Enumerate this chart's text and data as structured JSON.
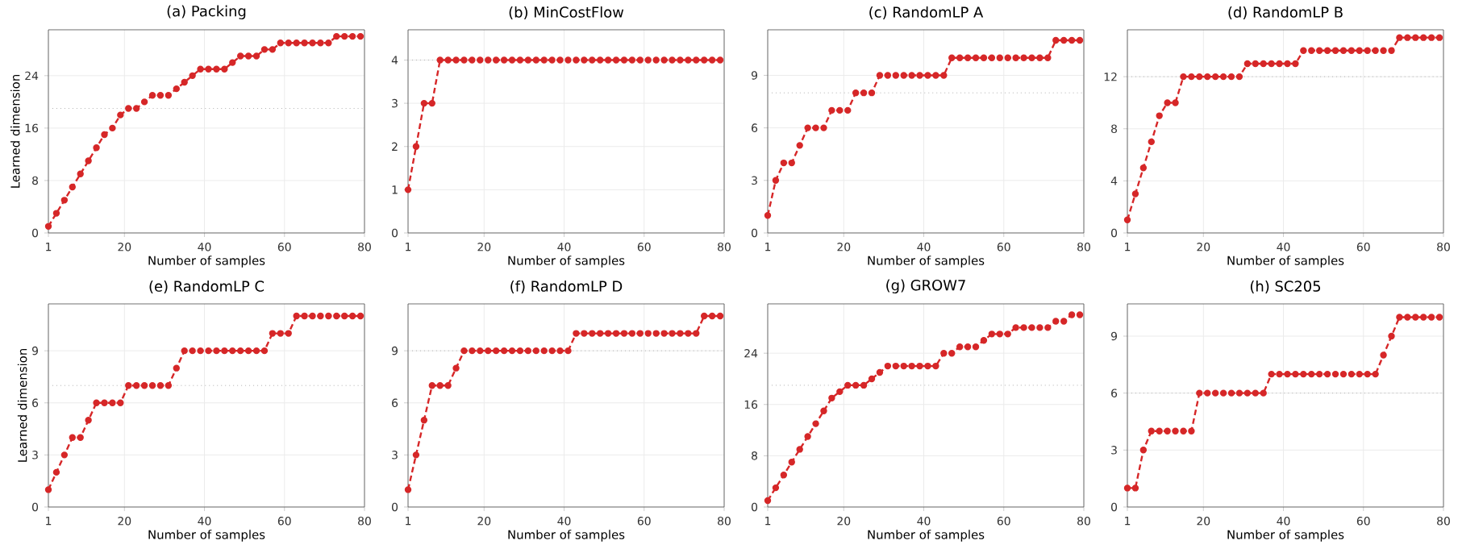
{
  "chart_data": [
    {
      "type": "line",
      "title": "(a) Packing",
      "xlabel": "Number of samples",
      "ylabel": "Learned dimension",
      "color": "#d62728",
      "marker": "circle",
      "line_style": "dashed",
      "grid": true,
      "xlim": [
        1,
        80
      ],
      "xticks": [
        1,
        20,
        40,
        60,
        80
      ],
      "ylim": [
        0,
        31
      ],
      "yticks": [
        0,
        8,
        16,
        24
      ],
      "ref_lines": [
        {
          "axis": "y",
          "value": 19,
          "color": "#b0b0b0",
          "line_style": "dotted"
        }
      ],
      "x": [
        1,
        3,
        5,
        7,
        9,
        11,
        13,
        15,
        17,
        19,
        21,
        23,
        25,
        27,
        29,
        31,
        33,
        35,
        37,
        39,
        41,
        43,
        45,
        47,
        49,
        51,
        53,
        55,
        57,
        59,
        61,
        63,
        65,
        67,
        69,
        71,
        73,
        75,
        77,
        79
      ],
      "values": [
        1,
        3,
        5,
        7,
        9,
        11,
        13,
        15,
        16,
        18,
        19,
        19,
        20,
        21,
        21,
        21,
        22,
        23,
        24,
        25,
        25,
        25,
        25,
        26,
        27,
        27,
        27,
        28,
        28,
        29,
        29,
        29,
        29,
        29,
        29,
        29,
        30,
        30,
        30,
        30
      ]
    },
    {
      "type": "line",
      "title": "(b) MinCostFlow",
      "xlabel": "Number of samples",
      "color": "#d62728",
      "marker": "circle",
      "line_style": "dashed",
      "grid": true,
      "xlim": [
        1,
        80
      ],
      "xticks": [
        1,
        20,
        40,
        60,
        80
      ],
      "ylim": [
        0,
        4.7
      ],
      "yticks": [
        0,
        1,
        2,
        3,
        4
      ],
      "ref_lines": [
        {
          "axis": "y",
          "value": 4,
          "color": "#b0b0b0",
          "line_style": "dotted"
        }
      ],
      "x": [
        1,
        3,
        5,
        7,
        9,
        11,
        13,
        15,
        17,
        19,
        21,
        23,
        25,
        27,
        29,
        31,
        33,
        35,
        37,
        39,
        41,
        43,
        45,
        47,
        49,
        51,
        53,
        55,
        57,
        59,
        61,
        63,
        65,
        67,
        69,
        71,
        73,
        75,
        77,
        79
      ],
      "values": [
        1,
        2,
        3,
        3,
        4,
        4,
        4,
        4,
        4,
        4,
        4,
        4,
        4,
        4,
        4,
        4,
        4,
        4,
        4,
        4,
        4,
        4,
        4,
        4,
        4,
        4,
        4,
        4,
        4,
        4,
        4,
        4,
        4,
        4,
        4,
        4,
        4,
        4,
        4,
        4
      ]
    },
    {
      "type": "line",
      "title": "(c) RandomLP A",
      "xlabel": "Number of samples",
      "color": "#d62728",
      "marker": "circle",
      "line_style": "dashed",
      "grid": true,
      "xlim": [
        1,
        80
      ],
      "xticks": [
        1,
        20,
        40,
        60,
        80
      ],
      "ylim": [
        0,
        11.6
      ],
      "yticks": [
        0,
        3,
        6,
        9
      ],
      "ref_lines": [
        {
          "axis": "y",
          "value": 8,
          "color": "#b0b0b0",
          "line_style": "dotted"
        }
      ],
      "x": [
        1,
        3,
        5,
        7,
        9,
        11,
        13,
        15,
        17,
        19,
        21,
        23,
        25,
        27,
        29,
        31,
        33,
        35,
        37,
        39,
        41,
        43,
        45,
        47,
        49,
        51,
        53,
        55,
        57,
        59,
        61,
        63,
        65,
        67,
        69,
        71,
        73,
        75,
        77,
        79
      ],
      "values": [
        1,
        3,
        4,
        4,
        5,
        6,
        6,
        6,
        7,
        7,
        7,
        8,
        8,
        8,
        9,
        9,
        9,
        9,
        9,
        9,
        9,
        9,
        9,
        10,
        10,
        10,
        10,
        10,
        10,
        10,
        10,
        10,
        10,
        10,
        10,
        10,
        11,
        11,
        11,
        11
      ]
    },
    {
      "type": "line",
      "title": "(d) RandomLP B",
      "xlabel": "Number of samples",
      "color": "#d62728",
      "marker": "circle",
      "line_style": "dashed",
      "grid": true,
      "xlim": [
        1,
        80
      ],
      "xticks": [
        1,
        20,
        40,
        60,
        80
      ],
      "ylim": [
        0,
        15.6
      ],
      "yticks": [
        0,
        4,
        8,
        12
      ],
      "ref_lines": [
        {
          "axis": "y",
          "value": 12,
          "color": "#b0b0b0",
          "line_style": "dotted"
        }
      ],
      "x": [
        1,
        3,
        5,
        7,
        9,
        11,
        13,
        15,
        17,
        19,
        21,
        23,
        25,
        27,
        29,
        31,
        33,
        35,
        37,
        39,
        41,
        43,
        45,
        47,
        49,
        51,
        53,
        55,
        57,
        59,
        61,
        63,
        65,
        67,
        69,
        71,
        73,
        75,
        77,
        79
      ],
      "values": [
        1,
        3,
        5,
        7,
        9,
        10,
        10,
        12,
        12,
        12,
        12,
        12,
        12,
        12,
        12,
        13,
        13,
        13,
        13,
        13,
        13,
        13,
        14,
        14,
        14,
        14,
        14,
        14,
        14,
        14,
        14,
        14,
        14,
        14,
        15,
        15,
        15,
        15,
        15,
        15
      ]
    },
    {
      "type": "line",
      "title": "(e) RandomLP C",
      "xlabel": "Number of samples",
      "ylabel": "Learned dimension",
      "color": "#d62728",
      "marker": "circle",
      "line_style": "dashed",
      "grid": true,
      "xlim": [
        1,
        80
      ],
      "xticks": [
        1,
        20,
        40,
        60,
        80
      ],
      "ylim": [
        0,
        11.7
      ],
      "yticks": [
        0,
        3,
        6,
        9
      ],
      "ref_lines": [
        {
          "axis": "y",
          "value": 7,
          "color": "#b0b0b0",
          "line_style": "dotted"
        }
      ],
      "x": [
        1,
        3,
        5,
        7,
        9,
        11,
        13,
        15,
        17,
        19,
        21,
        23,
        25,
        27,
        29,
        31,
        33,
        35,
        37,
        39,
        41,
        43,
        45,
        47,
        49,
        51,
        53,
        55,
        57,
        59,
        61,
        63,
        65,
        67,
        69,
        71,
        73,
        75,
        77,
        79
      ],
      "values": [
        1,
        2,
        3,
        4,
        4,
        5,
        6,
        6,
        6,
        6,
        7,
        7,
        7,
        7,
        7,
        7,
        8,
        9,
        9,
        9,
        9,
        9,
        9,
        9,
        9,
        9,
        9,
        9,
        10,
        10,
        10,
        11,
        11,
        11,
        11,
        11,
        11,
        11,
        11,
        11
      ]
    },
    {
      "type": "line",
      "title": "(f) RandomLP D",
      "xlabel": "Number of samples",
      "color": "#d62728",
      "marker": "circle",
      "line_style": "dashed",
      "grid": true,
      "xlim": [
        1,
        80
      ],
      "xticks": [
        1,
        20,
        40,
        60,
        80
      ],
      "ylim": [
        0,
        11.7
      ],
      "yticks": [
        0,
        3,
        6,
        9
      ],
      "ref_lines": [
        {
          "axis": "y",
          "value": 9,
          "color": "#b0b0b0",
          "line_style": "dotted"
        }
      ],
      "x": [
        1,
        3,
        5,
        7,
        9,
        11,
        13,
        15,
        17,
        19,
        21,
        23,
        25,
        27,
        29,
        31,
        33,
        35,
        37,
        39,
        41,
        43,
        45,
        47,
        49,
        51,
        53,
        55,
        57,
        59,
        61,
        63,
        65,
        67,
        69,
        71,
        73,
        75,
        77,
        79
      ],
      "values": [
        1,
        3,
        5,
        7,
        7,
        7,
        8,
        9,
        9,
        9,
        9,
        9,
        9,
        9,
        9,
        9,
        9,
        9,
        9,
        9,
        9,
        10,
        10,
        10,
        10,
        10,
        10,
        10,
        10,
        10,
        10,
        10,
        10,
        10,
        10,
        10,
        10,
        11,
        11,
        11
      ]
    },
    {
      "type": "line",
      "title": "(g) GROW7",
      "xlabel": "Number of samples",
      "color": "#d62728",
      "marker": "circle",
      "line_style": "dashed",
      "grid": true,
      "xlim": [
        1,
        80
      ],
      "xticks": [
        1,
        20,
        40,
        60,
        80
      ],
      "ylim": [
        0,
        31.7
      ],
      "yticks": [
        0,
        8,
        16,
        24
      ],
      "ref_lines": [
        {
          "axis": "y",
          "value": 19,
          "color": "#b0b0b0",
          "line_style": "dotted"
        }
      ],
      "x": [
        1,
        3,
        5,
        7,
        9,
        11,
        13,
        15,
        17,
        19,
        21,
        23,
        25,
        27,
        29,
        31,
        33,
        35,
        37,
        39,
        41,
        43,
        45,
        47,
        49,
        51,
        53,
        55,
        57,
        59,
        61,
        63,
        65,
        67,
        69,
        71,
        73,
        75,
        77,
        79
      ],
      "values": [
        1,
        3,
        5,
        7,
        9,
        11,
        13,
        15,
        17,
        18,
        19,
        19,
        19,
        20,
        21,
        22,
        22,
        22,
        22,
        22,
        22,
        22,
        24,
        24,
        25,
        25,
        25,
        26,
        27,
        27,
        27,
        28,
        28,
        28,
        28,
        28,
        29,
        29,
        30,
        30
      ]
    },
    {
      "type": "line",
      "title": "(h) SC205",
      "xlabel": "Number of samples",
      "color": "#d62728",
      "marker": "circle",
      "line_style": "dashed",
      "grid": true,
      "xlim": [
        1,
        80
      ],
      "xticks": [
        1,
        20,
        40,
        60,
        80
      ],
      "ylim": [
        0,
        10.7
      ],
      "yticks": [
        0,
        3,
        6,
        9
      ],
      "ref_lines": [
        {
          "axis": "y",
          "value": 6,
          "color": "#b0b0b0",
          "line_style": "dotted"
        }
      ],
      "x": [
        1,
        3,
        5,
        7,
        9,
        11,
        13,
        15,
        17,
        19,
        21,
        23,
        25,
        27,
        29,
        31,
        33,
        35,
        37,
        39,
        41,
        43,
        45,
        47,
        49,
        51,
        53,
        55,
        57,
        59,
        61,
        63,
        65,
        67,
        69,
        71,
        73,
        75,
        77,
        79
      ],
      "values": [
        1,
        1,
        3,
        4,
        4,
        4,
        4,
        4,
        4,
        6,
        6,
        6,
        6,
        6,
        6,
        6,
        6,
        6,
        7,
        7,
        7,
        7,
        7,
        7,
        7,
        7,
        7,
        7,
        7,
        7,
        7,
        7,
        8,
        9,
        10,
        10,
        10,
        10,
        10,
        10
      ]
    }
  ]
}
